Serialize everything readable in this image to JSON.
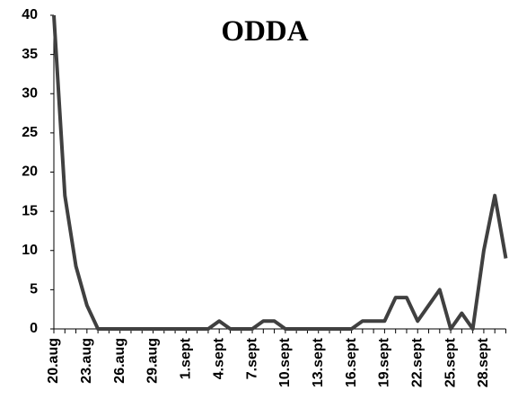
{
  "chart_data": {
    "type": "line",
    "title": "ODDA",
    "categories": [
      "20.aug",
      null,
      null,
      "23.aug",
      null,
      null,
      "26.aug",
      null,
      null,
      "29.aug",
      null,
      null,
      "1.sept",
      null,
      null,
      "4.sept",
      null,
      null,
      "7.sept",
      null,
      null,
      "10.sept",
      null,
      null,
      "13.sept",
      null,
      null,
      "16.sept",
      null,
      null,
      "19.sept",
      null,
      null,
      "22.sept",
      null,
      null,
      "25.sept",
      null,
      null,
      "28.sept",
      null,
      null
    ],
    "series": [
      {
        "color": "#404040",
        "values": [
          40,
          17,
          8,
          3,
          0,
          0,
          0,
          0,
          0,
          0,
          0,
          0,
          0,
          0,
          0,
          1,
          0,
          0,
          0,
          1,
          1,
          0,
          0,
          0,
          0,
          0,
          0,
          0,
          1,
          1,
          1,
          4,
          4,
          1,
          3,
          5,
          0,
          2,
          0,
          10,
          17,
          9
        ]
      }
    ],
    "ylim": [
      0,
      40
    ],
    "yticks": [
      0,
      5,
      10,
      15,
      20,
      25,
      30,
      35,
      40
    ],
    "grid": false
  }
}
